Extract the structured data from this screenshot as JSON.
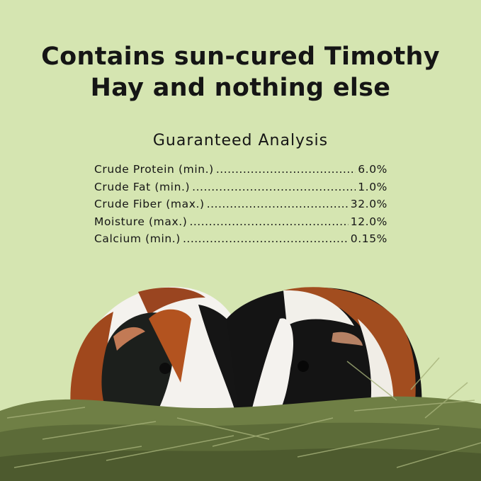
{
  "headline": {
    "line1": "Contains sun-cured Timothy",
    "line2": "Hay and nothing else"
  },
  "analysis": {
    "title": "Guaranteed Analysis",
    "rows": [
      {
        "label": "Crude Protein (min.)",
        "value": "6.0%"
      },
      {
        "label": "Crude Fat (min.)",
        "value": "1.0%"
      },
      {
        "label": "Crude Fiber (max.)",
        "value": "32.0%"
      },
      {
        "label": "Moisture (max.)",
        "value": "12.0%"
      },
      {
        "label": "Calcium (min.)",
        "value": "0.15%"
      }
    ]
  },
  "colors": {
    "background": "#d5e5b1",
    "text": "#151515",
    "hay": "#6f7f45"
  }
}
